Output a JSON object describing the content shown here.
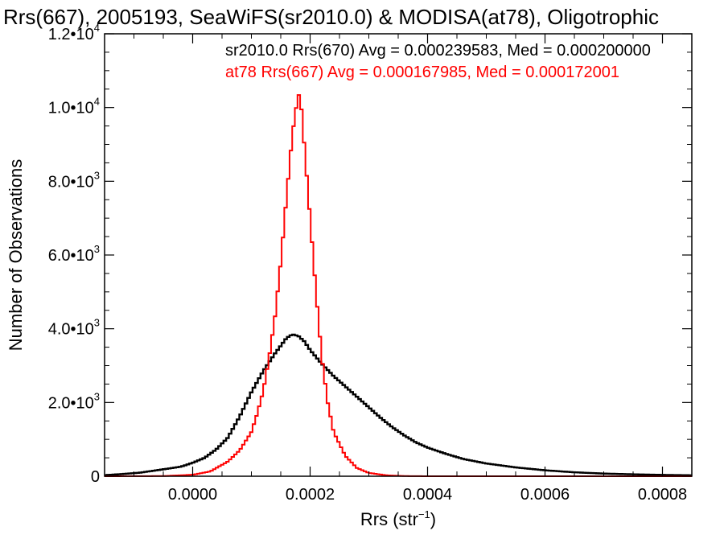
{
  "chart_data": {
    "type": "step",
    "title": "Rrs(667), 2005193, SeaWiFS(sr2010.0) & MODISA(at78), Oligotrophic",
    "xlabel": "Rrs (str",
    "xlabel_exp": "−1",
    "xlabel_close": ")",
    "ylabel": "Number of Observations",
    "xlim": [
      -0.00015,
      0.00085
    ],
    "ylim": [
      0,
      12000
    ],
    "grid": false,
    "legend_position": "top-right",
    "x_ticks": [
      {
        "value": 0.0,
        "label": "0.0000"
      },
      {
        "value": 0.0002,
        "label": "0.0002"
      },
      {
        "value": 0.0004,
        "label": "0.0004"
      },
      {
        "value": 0.0006,
        "label": "0.0006"
      },
      {
        "value": 0.0008,
        "label": "0.0008"
      }
    ],
    "y_ticks": [
      {
        "value": 0,
        "mant": "0",
        "exp": ""
      },
      {
        "value": 2000,
        "mant": "2.0•10",
        "exp": "3"
      },
      {
        "value": 4000,
        "mant": "4.0•10",
        "exp": "3"
      },
      {
        "value": 6000,
        "mant": "6.0•10",
        "exp": "3"
      },
      {
        "value": 8000,
        "mant": "8.0•10",
        "exp": "3"
      },
      {
        "value": 10000,
        "mant": "1.0•10",
        "exp": "4"
      },
      {
        "value": 12000,
        "mant": "1.2•10",
        "exp": "4"
      }
    ],
    "series": [
      {
        "name": "sr2010.0 Rrs(670) Avg = 0.000239583, Med = 0.000200000",
        "color": "#000000",
        "points": [
          [
            -0.00015,
            30
          ],
          [
            -0.00012,
            60
          ],
          [
            -9e-05,
            100
          ],
          [
            -6e-05,
            170
          ],
          [
            -4e-05,
            220
          ],
          [
            -2e-05,
            270
          ],
          [
            0.0,
            380
          ],
          [
            2e-05,
            520
          ],
          [
            4e-05,
            760
          ],
          [
            6e-05,
            1100
          ],
          [
            8e-05,
            1700
          ],
          [
            0.0001,
            2400
          ],
          [
            0.00012,
            3000
          ],
          [
            0.00014,
            3500
          ],
          [
            0.00016,
            3950
          ],
          [
            0.00017,
            4050
          ],
          [
            0.00018,
            4000
          ],
          [
            0.00019,
            3850
          ],
          [
            0.0002,
            3600
          ],
          [
            0.00022,
            3200
          ],
          [
            0.00024,
            2850
          ],
          [
            0.00026,
            2550
          ],
          [
            0.00028,
            2250
          ],
          [
            0.0003,
            1950
          ],
          [
            0.00032,
            1650
          ],
          [
            0.00034,
            1380
          ],
          [
            0.00036,
            1150
          ],
          [
            0.00038,
            950
          ],
          [
            0.0004,
            800
          ],
          [
            0.00043,
            630
          ],
          [
            0.00046,
            480
          ],
          [
            0.0005,
            350
          ],
          [
            0.00055,
            240
          ],
          [
            0.0006,
            160
          ],
          [
            0.00065,
            105
          ],
          [
            0.0007,
            70
          ],
          [
            0.00075,
            50
          ],
          [
            0.0008,
            35
          ],
          [
            0.00085,
            25
          ]
        ]
      },
      {
        "name": "at78 Rrs(667) Avg = 0.000167985, Med = 0.000172001",
        "color": "#ff0000",
        "points": [
          [
            -0.00015,
            0
          ],
          [
            -5e-05,
            5
          ],
          [
            0.0,
            40
          ],
          [
            3e-05,
            130
          ],
          [
            6e-05,
            400
          ],
          [
            8e-05,
            700
          ],
          [
            0.0001,
            1200
          ],
          [
            0.00011,
            1700
          ],
          [
            0.00012,
            2300
          ],
          [
            0.00013,
            3200
          ],
          [
            0.00014,
            4300
          ],
          [
            0.00015,
            5800
          ],
          [
            0.00016,
            7600
          ],
          [
            0.00017,
            9300
          ],
          [
            0.00018,
            10400
          ],
          [
            0.000185,
            10000
          ],
          [
            0.00019,
            9000
          ],
          [
            0.0002,
            7000
          ],
          [
            0.00021,
            5000
          ],
          [
            0.00022,
            3200
          ],
          [
            0.00023,
            2000
          ],
          [
            0.00024,
            1200
          ],
          [
            0.00026,
            550
          ],
          [
            0.00028,
            220
          ],
          [
            0.0003,
            90
          ],
          [
            0.00033,
            25
          ],
          [
            0.00036,
            5
          ],
          [
            0.0004,
            0
          ],
          [
            0.00085,
            0
          ]
        ]
      }
    ]
  }
}
